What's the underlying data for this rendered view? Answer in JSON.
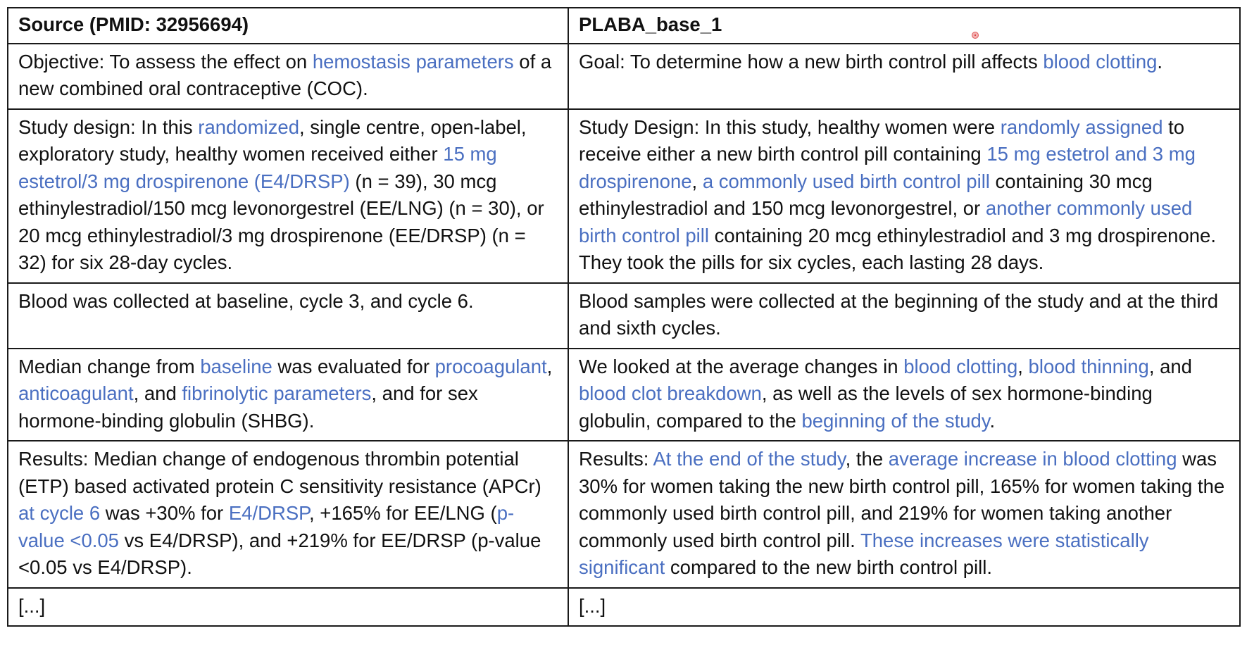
{
  "table": {
    "headers": [
      "Source (PMID: 32956694)",
      "PLABA_base_1"
    ],
    "rows": [
      {
        "source": [
          {
            "t": "Objective: To assess the effect on "
          },
          {
            "t": "hemostasis parameters",
            "hl": true
          },
          {
            "t": " of a new combined oral contraceptive (COC)."
          }
        ],
        "plaba": [
          {
            "t": "Goal: To determine how a new birth control pill affects "
          },
          {
            "t": "blood clotting",
            "hl": true
          },
          {
            "t": "."
          }
        ]
      },
      {
        "source": [
          {
            "t": "Study design: In this "
          },
          {
            "t": "randomized",
            "hl": true
          },
          {
            "t": ", single centre, open-label, exploratory study, healthy women received either "
          },
          {
            "t": "15 mg estetrol/3 mg drospirenone (E4/DRSP)",
            "hl": true
          },
          {
            "t": " (n = 39), 30 mcg ethinylestradiol/150 mcg levonorgestrel (EE/LNG) (n = 30), or 20 mcg ethinylestradiol/3 mg drospirenone (EE/DRSP) (n = 32) for six 28-day cycles."
          }
        ],
        "plaba": [
          {
            "t": "Study Design: In this study, healthy women were "
          },
          {
            "t": "randomly assigned",
            "hl": true
          },
          {
            "t": " to receive either a new birth control pill containing "
          },
          {
            "t": "15 mg estetrol and 3 mg drospirenone",
            "hl": true
          },
          {
            "t": ", "
          },
          {
            "t": "a commonly used birth control pill",
            "hl": true
          },
          {
            "t": " containing 30 mcg ethinylestradiol and 150 mcg levonorgestrel, or "
          },
          {
            "t": "another commonly used birth control pill",
            "hl": true
          },
          {
            "t": " containing 20 mcg ethinylestradiol and 3 mg drospirenone. They took the pills for six cycles, each lasting 28 days."
          }
        ]
      },
      {
        "source": [
          {
            "t": "Blood was collected at baseline, cycle 3, and cycle 6."
          }
        ],
        "plaba": [
          {
            "t": "Blood samples were collected at the beginning of the study and at the third and sixth cycles."
          }
        ]
      },
      {
        "source": [
          {
            "t": "Median change from "
          },
          {
            "t": "baseline",
            "hl": true
          },
          {
            "t": " was evaluated for "
          },
          {
            "t": "procoagulant",
            "hl": true
          },
          {
            "t": ", "
          },
          {
            "t": "anticoagulant",
            "hl": true
          },
          {
            "t": ", and "
          },
          {
            "t": "fibrinolytic parameters",
            "hl": true
          },
          {
            "t": ", and for sex hormone-binding globulin (SHBG)."
          }
        ],
        "plaba": [
          {
            "t": "We looked at the average changes in "
          },
          {
            "t": "blood clotting",
            "hl": true
          },
          {
            "t": ", "
          },
          {
            "t": "blood thinning",
            "hl": true
          },
          {
            "t": ", and "
          },
          {
            "t": "blood clot breakdown",
            "hl": true
          },
          {
            "t": ", as well as the levels of sex hormone-binding globulin, compared to the "
          },
          {
            "t": "beginning of the study",
            "hl": true
          },
          {
            "t": "."
          }
        ]
      },
      {
        "source": [
          {
            "t": "Results: Median change of endogenous thrombin potential (ETP) based activated protein C sensitivity resistance (APCr) "
          },
          {
            "t": "at cycle 6",
            "hl": true
          },
          {
            "t": " was +30% for "
          },
          {
            "t": "E4/DRSP",
            "hl": true
          },
          {
            "t": ", +165% for EE/LNG ("
          },
          {
            "t": "p-value <0.05",
            "hl": true
          },
          {
            "t": " vs E4/DRSP), and +219% for EE/DRSP (p-value <0.05 vs E4/DRSP)."
          }
        ],
        "plaba": [
          {
            "t": "Results: "
          },
          {
            "t": "At the end of the study",
            "hl": true
          },
          {
            "t": ", the "
          },
          {
            "t": "average increase in blood clotting",
            "hl": true
          },
          {
            "t": " was 30% for women taking the new birth control pill, 165% for women taking the commonly used birth control pill, and 219% for women taking another commonly used birth control pill. "
          },
          {
            "t": "These increases were statistically significant",
            "hl": true
          },
          {
            "t": " compared to the new birth control pill."
          }
        ]
      },
      {
        "source": [
          {
            "t": "[...]"
          }
        ],
        "plaba": [
          {
            "t": "[...]"
          }
        ]
      }
    ]
  },
  "colors": {
    "highlight": "#4a6fc1",
    "text": "#111111",
    "border": "#1a1a1a"
  }
}
